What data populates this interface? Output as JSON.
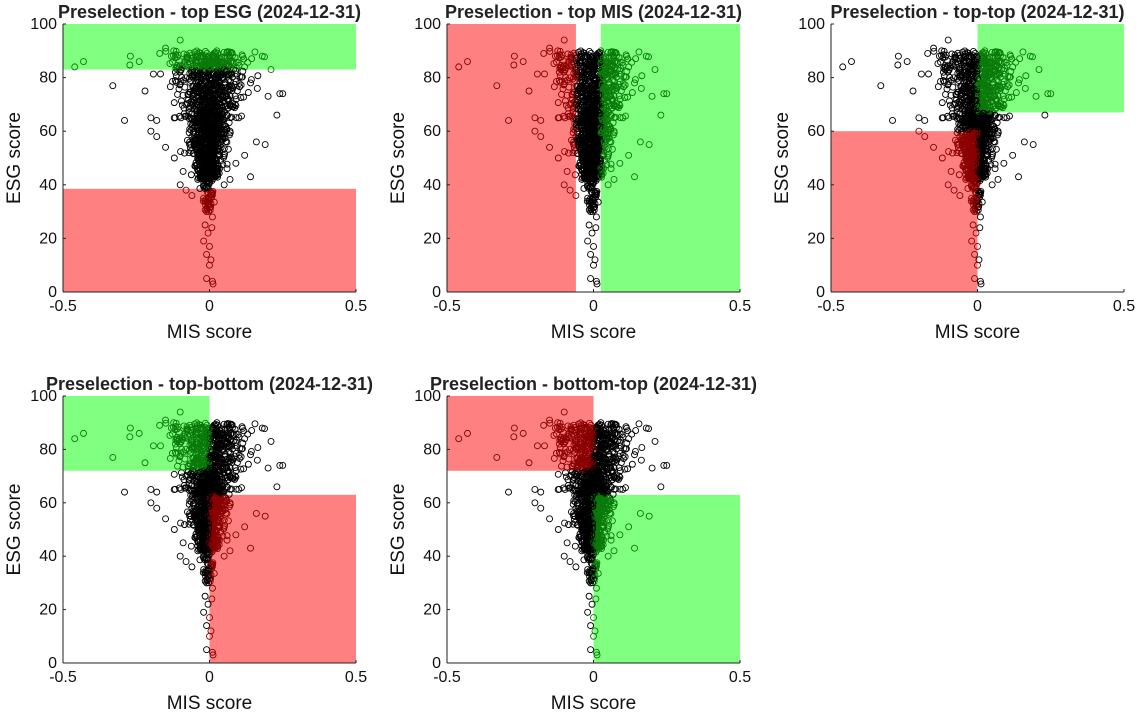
{
  "chart_data": [
    {
      "type": "scatter",
      "title": "Preselection - top ESG (2024-12-31)",
      "xlabel": "MIS score",
      "ylabel": "ESG score",
      "xlim": [
        -0.5,
        0.5
      ],
      "ylim": [
        0,
        100
      ],
      "xticks": [
        "-0.5",
        "0",
        "0.5"
      ],
      "yticks": [
        "0",
        "20",
        "40",
        "60",
        "80",
        "100"
      ],
      "regions": [
        {
          "name": "selected",
          "color": "#80ff80",
          "x": [
            -0.5,
            0.5
          ],
          "y": [
            83,
            100
          ]
        },
        {
          "name": "excluded",
          "color": "#ff8080",
          "x": [
            -0.5,
            0.5
          ],
          "y": [
            0,
            38.5
          ]
        }
      ]
    },
    {
      "type": "scatter",
      "title": "Preselection - top MIS (2024-12-31)",
      "xlabel": "MIS score",
      "ylabel": "ESG score",
      "xlim": [
        -0.5,
        0.5
      ],
      "ylim": [
        0,
        100
      ],
      "xticks": [
        "-0.5",
        "0",
        "0.5"
      ],
      "yticks": [
        "0",
        "20",
        "40",
        "60",
        "80",
        "100"
      ],
      "regions": [
        {
          "name": "excluded",
          "color": "#ff8080",
          "x": [
            -0.5,
            -0.06
          ],
          "y": [
            0,
            100
          ]
        },
        {
          "name": "selected",
          "color": "#80ff80",
          "x": [
            0.025,
            0.5
          ],
          "y": [
            0,
            100
          ]
        }
      ]
    },
    {
      "type": "scatter",
      "title": "Preselection - top-top (2024-12-31)",
      "xlabel": "MIS score",
      "ylabel": "ESG score",
      "xlim": [
        -0.5,
        0.5
      ],
      "ylim": [
        0,
        100
      ],
      "xticks": [
        "-0.5",
        "0",
        "0.5"
      ],
      "yticks": [
        "0",
        "20",
        "40",
        "60",
        "80",
        "100"
      ],
      "regions": [
        {
          "name": "selected",
          "color": "#80ff80",
          "x": [
            0,
            0.5
          ],
          "y": [
            67,
            100
          ]
        },
        {
          "name": "excluded",
          "color": "#ff8080",
          "x": [
            -0.5,
            0
          ],
          "y": [
            0,
            60
          ]
        }
      ]
    },
    {
      "type": "scatter",
      "title": "Preselection - top-bottom (2024-12-31)",
      "xlabel": "MIS score",
      "ylabel": "ESG score",
      "xlim": [
        -0.5,
        0.5
      ],
      "ylim": [
        0,
        100
      ],
      "xticks": [
        "-0.5",
        "0",
        "0.5"
      ],
      "yticks": [
        "0",
        "20",
        "40",
        "60",
        "80",
        "100"
      ],
      "regions": [
        {
          "name": "selected",
          "color": "#80ff80",
          "x": [
            -0.5,
            0
          ],
          "y": [
            72,
            100
          ]
        },
        {
          "name": "excluded",
          "color": "#ff8080",
          "x": [
            0,
            0.5
          ],
          "y": [
            0,
            63
          ]
        }
      ]
    },
    {
      "type": "scatter",
      "title": "Preselection - bottom-top (2024-12-31)",
      "xlabel": "MIS score",
      "ylabel": "ESG score",
      "xlim": [
        -0.5,
        0.5
      ],
      "ylim": [
        0,
        100
      ],
      "xticks": [
        "-0.5",
        "0",
        "0.5"
      ],
      "yticks": [
        "0",
        "20",
        "40",
        "60",
        "80",
        "100"
      ],
      "regions": [
        {
          "name": "excluded",
          "color": "#ff8080",
          "x": [
            -0.5,
            0
          ],
          "y": [
            72,
            100
          ]
        },
        {
          "name": "selected",
          "color": "#80ff80",
          "x": [
            0,
            0.5
          ],
          "y": [
            0,
            63
          ]
        }
      ]
    }
  ],
  "sample_points": [
    [
      -0.46,
      84
    ],
    [
      -0.43,
      86
    ],
    [
      -0.33,
      77
    ],
    [
      -0.29,
      64
    ],
    [
      -0.27,
      88
    ],
    [
      -0.24,
      86
    ],
    [
      -0.22,
      75
    ],
    [
      -0.2,
      65
    ],
    [
      -0.18,
      64
    ],
    [
      -0.17,
      89
    ],
    [
      -0.15,
      91
    ],
    [
      -0.13,
      88
    ],
    [
      -0.11,
      83
    ],
    [
      -0.1,
      94
    ],
    [
      -0.09,
      79
    ],
    [
      -0.08,
      70
    ],
    [
      -0.07,
      67
    ],
    [
      -0.06,
      58
    ],
    [
      -0.05,
      62
    ],
    [
      -0.045,
      75
    ],
    [
      -0.04,
      82
    ],
    [
      -0.035,
      71
    ],
    [
      -0.03,
      66
    ],
    [
      -0.025,
      78
    ],
    [
      -0.02,
      85
    ],
    [
      -0.018,
      72
    ],
    [
      -0.015,
      68
    ],
    [
      -0.012,
      74
    ],
    [
      -0.01,
      80
    ],
    [
      -0.008,
      64
    ],
    [
      -0.005,
      69
    ],
    [
      -0.003,
      77
    ],
    [
      0,
      72
    ],
    [
      0.003,
      66
    ],
    [
      0.005,
      81
    ],
    [
      0.008,
      70
    ],
    [
      0.01,
      75
    ],
    [
      0.013,
      62
    ],
    [
      0.015,
      88
    ],
    [
      0.018,
      73
    ],
    [
      0.02,
      68
    ],
    [
      0.025,
      90
    ],
    [
      0.03,
      79
    ],
    [
      0.035,
      64
    ],
    [
      0.04,
      86
    ],
    [
      0.05,
      71
    ],
    [
      0.06,
      82
    ],
    [
      0.07,
      60
    ],
    [
      0.08,
      76
    ],
    [
      0.1,
      65
    ],
    [
      0.12,
      84
    ],
    [
      0.14,
      78
    ],
    [
      0.16,
      56
    ],
    [
      0.18,
      88
    ],
    [
      0.2,
      73
    ],
    [
      0.21,
      83
    ],
    [
      0.23,
      66
    ],
    [
      0.24,
      74
    ],
    [
      0.25,
      74
    ],
    [
      0.19,
      55
    ],
    [
      -0.12,
      50
    ],
    [
      -0.09,
      45
    ],
    [
      -0.07,
      52
    ],
    [
      -0.05,
      47
    ],
    [
      -0.03,
      55
    ],
    [
      -0.02,
      50
    ],
    [
      -0.01,
      58
    ],
    [
      0,
      53
    ],
    [
      0.01,
      57
    ],
    [
      0.02,
      49
    ],
    [
      0.04,
      54
    ],
    [
      0.06,
      46
    ],
    [
      0.09,
      48
    ],
    [
      0.12,
      51
    ],
    [
      -0.15,
      54
    ],
    [
      -0.18,
      58
    ],
    [
      -0.2,
      60
    ],
    [
      0.14,
      43
    ],
    [
      -0.04,
      62
    ],
    [
      0.03,
      60
    ],
    [
      -0.1,
      40
    ],
    [
      -0.08,
      38
    ],
    [
      -0.06,
      36
    ],
    [
      -0.04,
      42
    ],
    [
      -0.02,
      44
    ],
    [
      -0.01,
      39
    ],
    [
      0,
      41
    ],
    [
      0.01,
      37
    ],
    [
      0.02,
      43
    ],
    [
      0.05,
      40
    ],
    [
      0.07,
      42
    ],
    [
      -0.02,
      35
    ],
    [
      0.005,
      33
    ],
    [
      -0.01,
      30
    ],
    [
      0.01,
      28
    ],
    [
      -0.015,
      25
    ],
    [
      -0.005,
      22
    ],
    [
      0.008,
      24
    ],
    [
      -0.02,
      19
    ],
    [
      0,
      17
    ],
    [
      -0.01,
      14
    ],
    [
      0.005,
      12
    ],
    [
      0,
      10
    ],
    [
      -0.01,
      5
    ],
    [
      0.01,
      4
    ],
    [
      0.012,
      3
    ]
  ]
}
